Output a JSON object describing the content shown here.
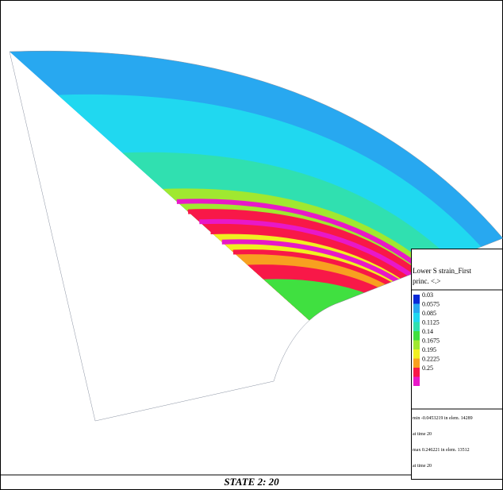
{
  "legend": {
    "title": "Lower S strain_First",
    "subtitle": "princ. <.>",
    "levels": [
      {
        "label": "0.03",
        "color": "#0a2ad8"
      },
      {
        "label": "0.0575",
        "color": "#28a8f0"
      },
      {
        "label": "0.085",
        "color": "#20d8f0"
      },
      {
        "label": "0.1125",
        "color": "#30e0b0"
      },
      {
        "label": "0.14",
        "color": "#40e040"
      },
      {
        "label": "0.1675",
        "color": "#a0e830"
      },
      {
        "label": "0.195",
        "color": "#f0f020"
      },
      {
        "label": "0.2225",
        "color": "#f8a020"
      },
      {
        "label": "0.25",
        "color": "#f81848"
      }
    ],
    "top_color": "#e818c8",
    "stats": [
      "min -0.0453219 in elem. 14289",
      "at time 20",
      "max 0.246221 in elem. 13512",
      "at time 20"
    ]
  },
  "footer": "STATE 2: 20"
}
